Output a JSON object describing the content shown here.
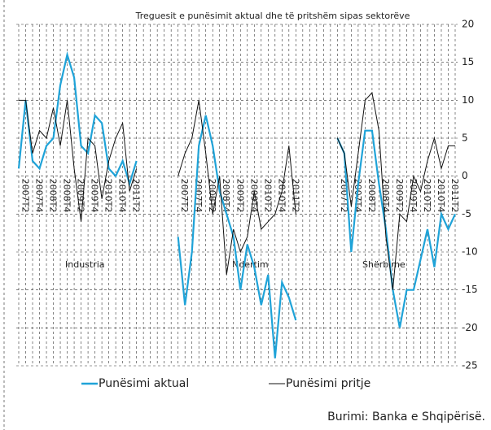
{
  "chart_data": {
    "type": "line",
    "title": "Treguesit e punësimit aktual dhe të pritshëm sipas sektorëve",
    "categories": [
      null,
      "2007T2",
      null,
      "2007T4",
      null,
      "2008T2",
      null,
      "2008T4",
      null,
      "2009T2",
      null,
      "2009T4",
      null,
      "2010T2",
      null,
      "2010T4",
      null,
      "2011T2",
      null,
      null,
      null,
      null,
      null,
      null,
      "2007T2",
      null,
      "2007T4",
      null,
      "2008T2",
      null,
      "2008T4",
      null,
      "2009T2",
      null,
      "2009T4",
      null,
      "2010T2",
      null,
      "2010T4",
      null,
      "2011T2",
      null,
      null,
      null,
      null,
      null,
      null,
      "2007T2",
      null,
      "2007T4",
      null,
      "2008T2",
      null,
      "2008T4",
      null,
      "2009T2",
      null,
      "2009T4",
      null,
      "2010T2",
      null,
      "2010T4",
      null,
      "2011T2"
    ],
    "series": [
      {
        "name": "Punësimi aktual",
        "color": "#1fa3d8",
        "values": [
          1,
          10,
          2,
          1,
          4,
          5,
          12,
          16,
          13,
          4,
          3,
          8,
          7,
          1,
          0,
          2,
          -1,
          2,
          null,
          null,
          null,
          null,
          null,
          -8,
          -17,
          -10,
          4,
          8,
          4,
          -2,
          -5,
          -8,
          -15,
          -9,
          -12,
          -17,
          -13,
          -24,
          -14,
          -16,
          -19,
          null,
          null,
          null,
          null,
          null,
          5,
          3,
          -10,
          -1,
          6,
          6,
          -1,
          -7,
          -15,
          -20,
          -15,
          -15,
          -11,
          -7,
          -12,
          -5,
          -7,
          -5
        ]
      },
      {
        "name": "Punësimi pritje",
        "color": "#111111",
        "values": [
          10,
          10,
          3,
          6,
          5,
          9,
          4,
          10,
          1,
          -6,
          5,
          4,
          -3,
          2,
          5,
          7,
          -2,
          1,
          null,
          null,
          null,
          null,
          null,
          0,
          3,
          5,
          10,
          3,
          -5,
          0,
          -13,
          -7,
          -10,
          -8,
          -2,
          -7,
          -6,
          -5,
          -2,
          4,
          -5,
          null,
          null,
          null,
          null,
          null,
          5,
          3,
          -4,
          3,
          10,
          11,
          6,
          -8,
          -15,
          -5,
          -6,
          0,
          -2,
          2,
          5,
          1,
          4,
          4
        ]
      }
    ],
    "ylim": [
      -25,
      20
    ],
    "yticks": [
      -25,
      -20,
      -15,
      -10,
      -5,
      0,
      5,
      10,
      15,
      20
    ],
    "grid": true,
    "annotations": [
      "Industria",
      "Ndertim",
      "Shërbime"
    ],
    "source": "Burimi: Banka e Shqipërisë."
  }
}
